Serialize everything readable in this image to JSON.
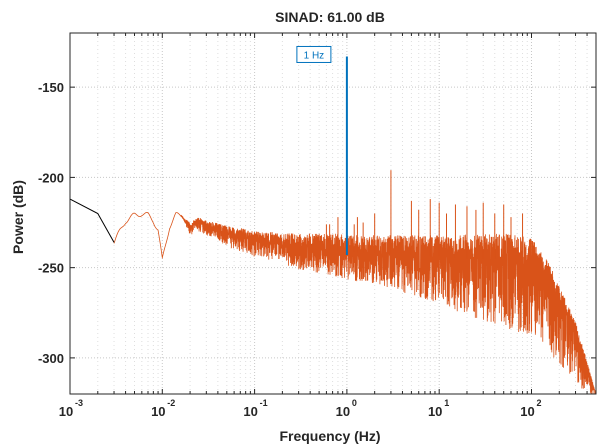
{
  "chart_data": {
    "type": "line",
    "title": "SINAD:  61.00 dB",
    "xlabel": "Frequency (Hz)",
    "ylabel": "Power (dB)",
    "xscale": "log",
    "xlim": [
      0.001,
      500
    ],
    "ylim": [
      -320,
      -120
    ],
    "grid": true,
    "x_tick_values": [
      0.001,
      0.01,
      0.1,
      1,
      10,
      100
    ],
    "x_tick_labels": [
      {
        "base": "10",
        "exp": "-3"
      },
      {
        "base": "10",
        "exp": "-2"
      },
      {
        "base": "10",
        "exp": "-1"
      },
      {
        "base": "10",
        "exp": "0"
      },
      {
        "base": "10",
        "exp": "1"
      },
      {
        "base": "10",
        "exp": "2"
      }
    ],
    "y_ticks": [
      -150,
      -200,
      -250,
      -300
    ],
    "y_tick_labels": [
      "-150",
      "-200",
      "-250",
      "-300"
    ],
    "annotation": {
      "text": "1 Hz",
      "x": 1,
      "y": -133
    },
    "series": [
      {
        "role": "dc-region",
        "color": "#000000",
        "x": [
          0.001,
          0.002,
          0.003
        ],
        "y": [
          -212,
          -220,
          -236
        ]
      },
      {
        "role": "spectrum",
        "color": "#D95319",
        "x": [
          0.003,
          0.004,
          0.005,
          0.006,
          0.007,
          0.008,
          0.009,
          0.01,
          0.012,
          0.014,
          0.016,
          0.02,
          0.025,
          0.03,
          0.04,
          0.05,
          0.07,
          0.1,
          0.15,
          0.2,
          0.3,
          0.5,
          0.7,
          1,
          2,
          5,
          10,
          20,
          50,
          100,
          150,
          200,
          300,
          400,
          500
        ],
        "y": [
          -236,
          -224,
          -221,
          -220,
          -221,
          -224,
          -229,
          -246,
          -227,
          -221,
          -221,
          -228,
          -225,
          -227,
          -229,
          -231,
          -233,
          -235,
          -236,
          -237,
          -238,
          -239,
          -240,
          -241,
          -242,
          -243,
          -244,
          -245,
          -245,
          -246,
          -256,
          -268,
          -285,
          -305,
          -320
        ],
        "noise_lo": [
          0,
          0,
          0,
          0,
          0,
          0,
          0,
          0,
          0,
          0,
          0,
          4,
          5,
          5,
          6,
          7,
          8,
          9,
          10,
          11,
          13,
          14,
          15,
          16,
          18,
          22,
          26,
          32,
          38,
          42,
          40,
          35,
          30,
          15,
          0
        ],
        "noise_hi": [
          0,
          0,
          0,
          0,
          0,
          0,
          0,
          0,
          0,
          0,
          0,
          3,
          3,
          3,
          4,
          4,
          5,
          5,
          6,
          6,
          7,
          8,
          9,
          9,
          10,
          11,
          12,
          13,
          14,
          13,
          10,
          8,
          5,
          3,
          0
        ]
      },
      {
        "role": "fundamental",
        "color": "#0072BD",
        "x": [
          1,
          1
        ],
        "y": [
          -243,
          -133
        ]
      }
    ],
    "spurs": [
      {
        "x": 0.6,
        "y": -226
      },
      {
        "x": 0.65,
        "y": -226
      },
      {
        "x": 0.8,
        "y": -222
      },
      {
        "x": 1.2,
        "y": -226
      },
      {
        "x": 1.3,
        "y": -222
      },
      {
        "x": 1.5,
        "y": -225
      },
      {
        "x": 2,
        "y": -220
      },
      {
        "x": 3,
        "y": -196
      },
      {
        "x": 5,
        "y": -213
      },
      {
        "x": 6,
        "y": -218
      },
      {
        "x": 8,
        "y": -212
      },
      {
        "x": 10,
        "y": -214
      },
      {
        "x": 12,
        "y": -220
      },
      {
        "x": 15,
        "y": -215
      },
      {
        "x": 20,
        "y": -216
      },
      {
        "x": 25,
        "y": -218
      },
      {
        "x": 30,
        "y": -214
      },
      {
        "x": 40,
        "y": -220
      },
      {
        "x": 50,
        "y": -215
      },
      {
        "x": 60,
        "y": -222
      },
      {
        "x": 80,
        "y": -220
      }
    ]
  }
}
